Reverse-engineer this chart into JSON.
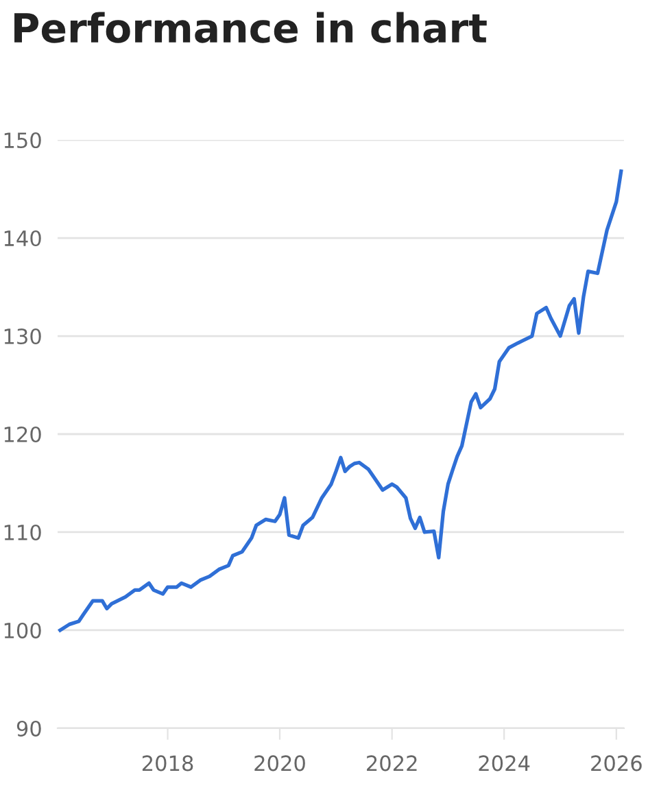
{
  "chart_data": {
    "type": "line",
    "title": "Performance in chart",
    "x": [
      "2016-02",
      "2016-04",
      "2016-06",
      "2016-07",
      "2016-09",
      "2016-11",
      "2016-12",
      "2017-01",
      "2017-04",
      "2017-06",
      "2017-07",
      "2017-09",
      "2017-10",
      "2017-12",
      "2018-01",
      "2018-03",
      "2018-04",
      "2018-06",
      "2018-08",
      "2018-10",
      "2018-12",
      "2019-02",
      "2019-03",
      "2019-05",
      "2019-07",
      "2019-08",
      "2019-10",
      "2019-12",
      "2020-01",
      "2020-02",
      "2020-03",
      "2020-05",
      "2020-06",
      "2020-08",
      "2020-10",
      "2020-12",
      "2021-01",
      "2021-02",
      "2021-03",
      "2021-04",
      "2021-05",
      "2021-06",
      "2021-08",
      "2021-09",
      "2021-11",
      "2022-01",
      "2022-02",
      "2022-04",
      "2022-05",
      "2022-06",
      "2022-07",
      "2022-08",
      "2022-10",
      "2022-11",
      "2022-12",
      "2023-01",
      "2023-02",
      "2023-03",
      "2023-04",
      "2023-06",
      "2023-07",
      "2023-08",
      "2023-10",
      "2023-11",
      "2023-12",
      "2024-02",
      "2024-04",
      "2024-07",
      "2024-08",
      "2024-10",
      "2024-11",
      "2025-01",
      "2025-03",
      "2025-04",
      "2025-05",
      "2025-06",
      "2025-07",
      "2025-09",
      "2025-11",
      "2026-01",
      "2026-02"
    ],
    "series": [
      {
        "color": "#2f6fd6",
        "values": [
          100.0,
          100.6,
          100.9,
          101.6,
          103.0,
          103.0,
          102.2,
          102.7,
          103.4,
          104.1,
          104.1,
          104.8,
          104.1,
          103.7,
          104.4,
          104.4,
          104.8,
          104.4,
          105.1,
          105.5,
          106.2,
          106.6,
          107.6,
          108.0,
          109.4,
          110.7,
          111.3,
          111.1,
          111.8,
          113.5,
          109.7,
          109.4,
          110.7,
          111.5,
          113.5,
          114.9,
          116.2,
          117.6,
          116.2,
          116.7,
          117.0,
          117.1,
          116.4,
          115.7,
          114.3,
          114.9,
          114.6,
          113.5,
          111.4,
          110.4,
          111.5,
          110.0,
          110.1,
          107.4,
          112.1,
          114.9,
          116.4,
          117.7,
          118.8,
          123.3,
          124.1,
          122.7,
          123.6,
          124.6,
          127.4,
          128.8,
          129.3,
          130.0,
          132.3,
          132.9,
          131.8,
          130.0,
          133.1,
          133.8,
          130.3,
          134.0,
          136.6,
          136.4,
          140.8,
          143.7,
          146.8
        ]
      }
    ],
    "xlim": [
      "2016-01-15",
      "2026-02-20"
    ],
    "xticks": [
      "2018",
      "2020",
      "2022",
      "2024",
      "2026"
    ],
    "ylim": [
      90,
      150
    ],
    "yticks": [
      90,
      100,
      110,
      120,
      130,
      140,
      150
    ],
    "grid": "y",
    "marker": "none",
    "line_style": "solid"
  }
}
